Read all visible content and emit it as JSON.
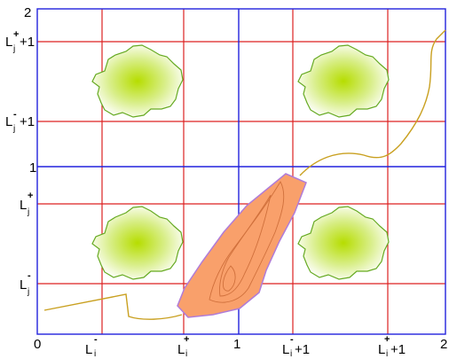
{
  "axis_labels": {
    "x": {
      "zero": "0",
      "one": "1",
      "two": "2"
    },
    "y": {
      "one": "1",
      "two": "2"
    }
  },
  "grid_labels": {
    "L": "L",
    "i": "i",
    "j": "j",
    "plus": "+",
    "minus": "-",
    "plus_one": "+1"
  },
  "colors": {
    "grid_blue": "#2222dd",
    "grid_red": "#dd2222",
    "blob_fill": "#b6dd00",
    "blob_outline": "#66aa22",
    "region_fill": "#f9a06b",
    "region_outline": "#b07cd8",
    "path_stroke": "#c9a020"
  }
}
